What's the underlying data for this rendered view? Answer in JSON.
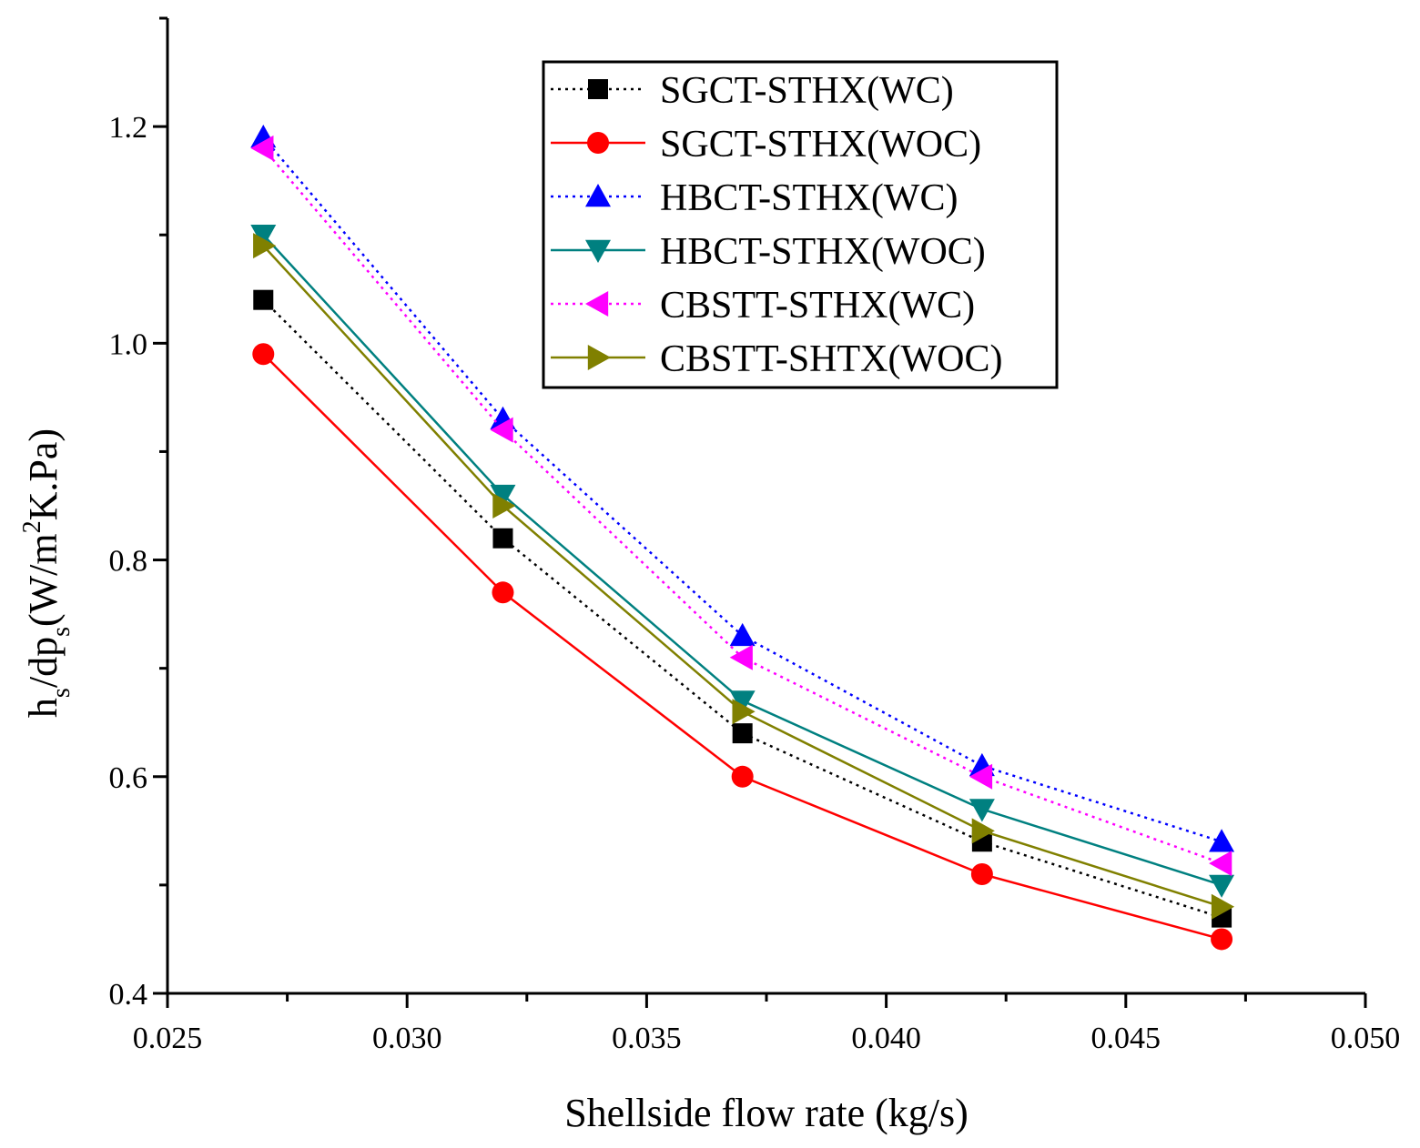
{
  "chart_data": {
    "type": "line",
    "title": "",
    "xlabel": "Shellside flow rate (kg/s)",
    "ylabel": {
      "parts": [
        "h",
        "s",
        "/dp",
        "s",
        "(W/m",
        "2",
        "K.Pa)"
      ]
    },
    "xlim": [
      0.025,
      0.05
    ],
    "ylim": [
      0.4,
      1.3
    ],
    "x_ticks": [
      "0.025",
      "0.030",
      "0.035",
      "0.040",
      "0.045",
      "0.050"
    ],
    "y_ticks": [
      "0.4",
      "0.6",
      "0.8",
      "1.0",
      "1.2"
    ],
    "x": [
      0.027,
      0.032,
      0.037,
      0.042,
      0.047
    ],
    "legend_position": "top-right",
    "series": [
      {
        "name": "SGCT-STHX(WC)",
        "values": [
          1.04,
          0.82,
          0.64,
          0.54,
          0.47
        ],
        "color": "#000000",
        "marker": "square",
        "line": "dotted"
      },
      {
        "name": "SGCT-STHX(WOC)",
        "values": [
          0.99,
          0.77,
          0.6,
          0.51,
          0.45
        ],
        "color": "#ff0000",
        "marker": "circle",
        "line": "solid"
      },
      {
        "name": "HBCT-STHX(WC)",
        "values": [
          1.19,
          0.93,
          0.73,
          0.61,
          0.54
        ],
        "color": "#0000ff",
        "marker": "triangle-up",
        "line": "dotted"
      },
      {
        "name": "HBCT-STHX(WOC)",
        "values": [
          1.1,
          0.86,
          0.67,
          0.57,
          0.5
        ],
        "color": "#008080",
        "marker": "triangle-down",
        "line": "solid"
      },
      {
        "name": "CBSTT-STHX(WC)",
        "values": [
          1.18,
          0.92,
          0.71,
          0.6,
          0.52
        ],
        "color": "#ff00ff",
        "marker": "triangle-left",
        "line": "dotted"
      },
      {
        "name": "CBSTT-SHTX(WOC)",
        "values": [
          1.09,
          0.85,
          0.66,
          0.55,
          0.48
        ],
        "color": "#808000",
        "marker": "triangle-right",
        "line": "solid"
      }
    ]
  }
}
